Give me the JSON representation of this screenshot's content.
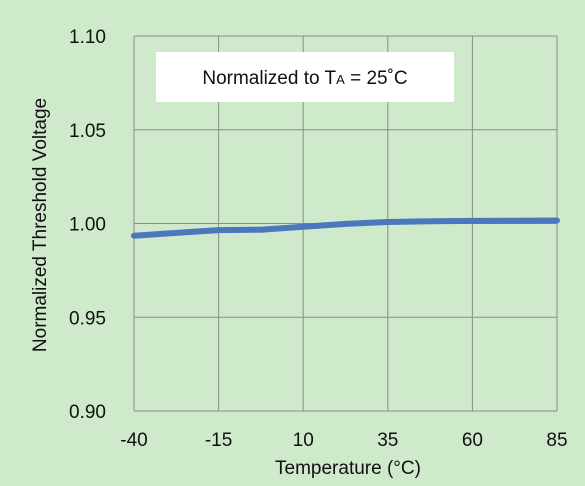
{
  "chart_data": {
    "type": "line",
    "xlabel": "Temperature (°C)",
    "ylabel": "Normalized Threshold Voltage",
    "xlim": [
      -40,
      85
    ],
    "ylim": [
      0.9,
      1.1
    ],
    "x_ticks": [
      "-40",
      "-15",
      "10",
      "35",
      "60",
      "85"
    ],
    "y_ticks": [
      "0.90",
      "0.95",
      "1.00",
      "1.05",
      "1.10"
    ],
    "grid": true,
    "annotation": {
      "prefix": "Normalized to T",
      "subscript": "A",
      "suffix": " = 25˚C"
    },
    "series": [
      {
        "color": "#4a78bd",
        "x": [
          -40,
          -27.5,
          -15,
          -2.5,
          10,
          22.5,
          35,
          47.5,
          60,
          72.5,
          85
        ],
        "y": [
          0.9935,
          0.995,
          0.9965,
          0.9967,
          0.9983,
          0.9998,
          1.0008,
          1.0012,
          1.0014,
          1.0015,
          1.0016
        ]
      }
    ]
  },
  "colors": {
    "background": "#cfe9cb",
    "grid": "#8c8c8c",
    "line": "#4a78bd"
  }
}
